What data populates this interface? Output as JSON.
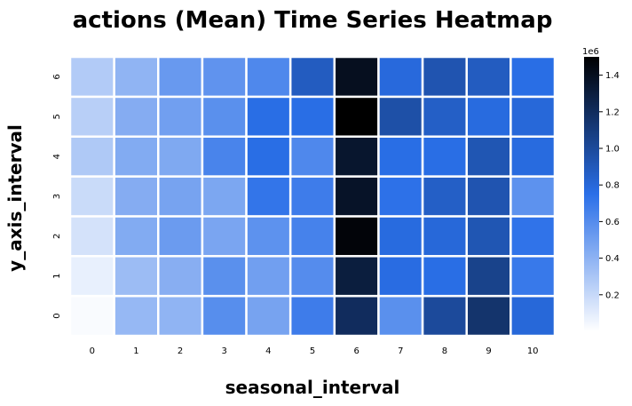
{
  "chart_data": {
    "type": "heatmap",
    "title": "actions (Mean) Time Series Heatmap",
    "xlabel": "seasonal_interval",
    "ylabel": "y_axis_interval",
    "x_categories": [
      "0",
      "1",
      "2",
      "3",
      "4",
      "5",
      "6",
      "7",
      "8",
      "9",
      "10"
    ],
    "y_categories": [
      "0",
      "1",
      "2",
      "3",
      "4",
      "5",
      "6"
    ],
    "values": [
      [
        20000,
        370000,
        390000,
        590000,
        480000,
        680000,
        1200000,
        580000,
        1000000,
        1150000,
        800000
      ],
      [
        80000,
        350000,
        420000,
        580000,
        500000,
        600000,
        1300000,
        770000,
        760000,
        1050000,
        700000
      ],
      [
        150000,
        440000,
        520000,
        470000,
        570000,
        650000,
        1470000,
        780000,
        800000,
        920000,
        730000
      ],
      [
        190000,
        430000,
        480000,
        460000,
        720000,
        680000,
        1370000,
        740000,
        860000,
        930000,
        570000
      ],
      [
        280000,
        440000,
        450000,
        640000,
        760000,
        620000,
        1350000,
        760000,
        760000,
        920000,
        780000
      ],
      [
        250000,
        430000,
        500000,
        580000,
        760000,
        760000,
        1510000,
        960000,
        860000,
        780000,
        800000
      ],
      [
        270000,
        390000,
        530000,
        560000,
        620000,
        880000,
        1400000,
        790000,
        930000,
        880000,
        760000
      ]
    ],
    "vmin": 0,
    "vmax": 1500000,
    "colormap": [
      "#ffffff",
      "#2a6fe8",
      "#000000"
    ],
    "colorbar": {
      "ticks": [
        "0.2",
        "0.4",
        "0.6",
        "0.8",
        "1.0",
        "1.2",
        "1.4"
      ],
      "tick_values": [
        200000,
        400000,
        600000,
        800000,
        1000000,
        1200000,
        1400000
      ],
      "multiplier": "1e6"
    },
    "grid": true
  }
}
